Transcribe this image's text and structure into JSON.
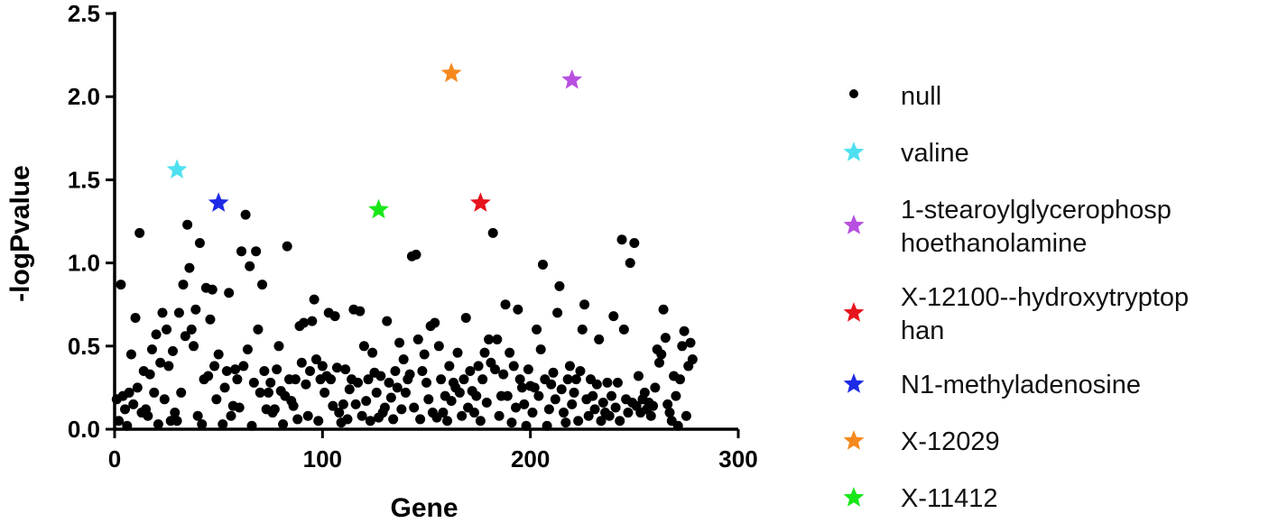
{
  "chart_data": {
    "type": "scatter",
    "xlabel": "Gene",
    "ylabel": "-logPvalue",
    "xlim": [
      0,
      300
    ],
    "ylim": [
      0,
      2.5
    ],
    "x_ticks": [
      "0",
      "100",
      "200",
      "300"
    ],
    "y_ticks": [
      "0.0",
      "0.5",
      "1.0",
      "1.5",
      "2.0",
      "2.5"
    ],
    "grid": false,
    "legend_position": "right",
    "series": [
      {
        "name": "null",
        "marker": "circle",
        "color": "#000000",
        "points": [
          [
            1,
            0.18
          ],
          [
            2,
            0.05
          ],
          [
            3,
            0.87
          ],
          [
            4,
            0.2
          ],
          [
            5,
            0.12
          ],
          [
            6,
            0.02
          ],
          [
            7,
            0.22
          ],
          [
            8,
            0.45
          ],
          [
            9,
            0.15
          ],
          [
            10,
            0.67
          ],
          [
            11,
            0.25
          ],
          [
            12,
            1.18
          ],
          [
            13,
            0.1
          ],
          [
            14,
            0.35
          ],
          [
            15,
            0.12
          ],
          [
            16,
            0.08
          ],
          [
            17,
            0.33
          ],
          [
            18,
            0.48
          ],
          [
            19,
            0.22
          ],
          [
            20,
            0.57
          ],
          [
            21,
            0.03
          ],
          [
            22,
            0.4
          ],
          [
            23,
            0.7
          ],
          [
            24,
            0.18
          ],
          [
            25,
            0.6
          ],
          [
            26,
            0.38
          ],
          [
            27,
            0.05
          ],
          [
            28,
            0.47
          ],
          [
            29,
            0.1
          ],
          [
            30,
            0.05
          ],
          [
            31,
            0.7
          ],
          [
            32,
            0.22
          ],
          [
            33,
            0.87
          ],
          [
            34,
            0.56
          ],
          [
            35,
            1.23
          ],
          [
            36,
            0.97
          ],
          [
            37,
            0.6
          ],
          [
            38,
            0.5
          ],
          [
            39,
            0.72
          ],
          [
            40,
            0.08
          ],
          [
            41,
            1.12
          ],
          [
            42,
            0.03
          ],
          [
            43,
            0.3
          ],
          [
            44,
            0.85
          ],
          [
            45,
            0.32
          ],
          [
            46,
            0.66
          ],
          [
            47,
            0.84
          ],
          [
            48,
            0.38
          ],
          [
            49,
            0.18
          ],
          [
            50,
            0.45
          ],
          [
            52,
            0.03
          ],
          [
            53,
            0.25
          ],
          [
            54,
            0.35
          ],
          [
            55,
            0.82
          ],
          [
            56,
            0.08
          ],
          [
            57,
            0.14
          ],
          [
            58,
            0.36
          ],
          [
            59,
            0.3
          ],
          [
            60,
            0.13
          ],
          [
            61,
            1.07
          ],
          [
            62,
            0.38
          ],
          [
            63,
            1.29
          ],
          [
            64,
            0.48
          ],
          [
            65,
            0.98
          ],
          [
            66,
            0.02
          ],
          [
            67,
            0.28
          ],
          [
            68,
            1.07
          ],
          [
            69,
            0.6
          ],
          [
            70,
            0.22
          ],
          [
            71,
            0.87
          ],
          [
            72,
            0.35
          ],
          [
            73,
            0.12
          ],
          [
            74,
            0.22
          ],
          [
            75,
            0.28
          ],
          [
            76,
            0.1
          ],
          [
            77,
            0.12
          ],
          [
            78,
            0.36
          ],
          [
            79,
            0.5
          ],
          [
            80,
            0.23
          ],
          [
            81,
            0.03
          ],
          [
            82,
            0.2
          ],
          [
            83,
            1.1
          ],
          [
            84,
            0.3
          ],
          [
            85,
            0.17
          ],
          [
            86,
            0.14
          ],
          [
            87,
            0.3
          ],
          [
            88,
            0.06
          ],
          [
            89,
            0.62
          ],
          [
            90,
            0.4
          ],
          [
            91,
            0.64
          ],
          [
            92,
            0.27
          ],
          [
            93,
            0.08
          ],
          [
            94,
            0.35
          ],
          [
            95,
            0.65
          ],
          [
            96,
            0.78
          ],
          [
            97,
            0.42
          ],
          [
            98,
            0.05
          ],
          [
            99,
            0.3
          ],
          [
            100,
            0.38
          ],
          [
            101,
            0.22
          ],
          [
            102,
            0.32
          ],
          [
            103,
            0.7
          ],
          [
            104,
            0.3
          ],
          [
            105,
            0.14
          ],
          [
            106,
            0.68
          ],
          [
            107,
            0.37
          ],
          [
            108,
            0.1
          ],
          [
            109,
            0.04
          ],
          [
            110,
            0.15
          ],
          [
            111,
            0.36
          ],
          [
            112,
            0.06
          ],
          [
            113,
            0.24
          ],
          [
            114,
            0.3
          ],
          [
            115,
            0.72
          ],
          [
            116,
            0.15
          ],
          [
            117,
            0.28
          ],
          [
            118,
            0.71
          ],
          [
            119,
            0.08
          ],
          [
            120,
            0.5
          ],
          [
            121,
            0.17
          ],
          [
            122,
            0.3
          ],
          [
            123,
            0.05
          ],
          [
            124,
            0.46
          ],
          [
            125,
            0.34
          ],
          [
            126,
            0.22
          ],
          [
            127,
            0.07
          ],
          [
            128,
            0.32
          ],
          [
            129,
            0.1
          ],
          [
            130,
            0.13
          ],
          [
            131,
            0.65
          ],
          [
            132,
            0.28
          ],
          [
            133,
            0.19
          ],
          [
            134,
            0.06
          ],
          [
            135,
            0.35
          ],
          [
            136,
            0.25
          ],
          [
            137,
            0.52
          ],
          [
            138,
            0.12
          ],
          [
            139,
            0.42
          ],
          [
            140,
            0.22
          ],
          [
            141,
            0.3
          ],
          [
            142,
            0.33
          ],
          [
            143,
            1.04
          ],
          [
            144,
            0.13
          ],
          [
            145,
            1.05
          ],
          [
            146,
            0.54
          ],
          [
            147,
            0.06
          ],
          [
            148,
            0.35
          ],
          [
            149,
            0.45
          ],
          [
            150,
            0.28
          ],
          [
            151,
            0.18
          ],
          [
            152,
            0.62
          ],
          [
            153,
            0.1
          ],
          [
            154,
            0.64
          ],
          [
            155,
            0.07
          ],
          [
            156,
            0.5
          ],
          [
            157,
            0.3
          ],
          [
            158,
            0.1
          ],
          [
            159,
            0.2
          ],
          [
            160,
            0.05
          ],
          [
            161,
            0.38
          ],
          [
            162,
            0.17
          ],
          [
            163,
            0.28
          ],
          [
            164,
            0.25
          ],
          [
            165,
            0.46
          ],
          [
            166,
            0.22
          ],
          [
            167,
            0.08
          ],
          [
            168,
            0.3
          ],
          [
            169,
            0.67
          ],
          [
            170,
            0.13
          ],
          [
            171,
            0.35
          ],
          [
            172,
            0.23
          ],
          [
            173,
            0.1
          ],
          [
            174,
            0.2
          ],
          [
            175,
            0.38
          ],
          [
            176,
            0.05
          ],
          [
            177,
            0.3
          ],
          [
            178,
            0.46
          ],
          [
            179,
            0.16
          ],
          [
            180,
            0.54
          ],
          [
            181,
            0.4
          ],
          [
            182,
            1.18
          ],
          [
            183,
            0.36
          ],
          [
            184,
            0.54
          ],
          [
            185,
            0.08
          ],
          [
            186,
            0.2
          ],
          [
            187,
            0.33
          ],
          [
            188,
            0.75
          ],
          [
            189,
            0.2
          ],
          [
            190,
            0.46
          ],
          [
            191,
            0.04
          ],
          [
            192,
            0.38
          ],
          [
            193,
            0.13
          ],
          [
            194,
            0.72
          ],
          [
            195,
            0.3
          ],
          [
            196,
            0.25
          ],
          [
            197,
            0.15
          ],
          [
            198,
            0.02
          ],
          [
            199,
            0.36
          ],
          [
            200,
            0.26
          ],
          [
            201,
            0.1
          ],
          [
            202,
            0.25
          ],
          [
            203,
            0.6
          ],
          [
            204,
            0.2
          ],
          [
            205,
            0.48
          ],
          [
            206,
            0.99
          ],
          [
            207,
            0.3
          ],
          [
            208,
            0.02
          ],
          [
            209,
            0.12
          ],
          [
            210,
            0.27
          ],
          [
            211,
            0.34
          ],
          [
            212,
            0.18
          ],
          [
            213,
            0.7
          ],
          [
            214,
            0.86
          ],
          [
            215,
            0.24
          ],
          [
            216,
            0.1
          ],
          [
            217,
            0.04
          ],
          [
            218,
            0.3
          ],
          [
            219,
            0.38
          ],
          [
            220,
            0.15
          ],
          [
            221,
            0.22
          ],
          [
            222,
            0.3
          ],
          [
            223,
            0.05
          ],
          [
            224,
            0.35
          ],
          [
            225,
            0.6
          ],
          [
            226,
            0.75
          ],
          [
            227,
            0.18
          ],
          [
            228,
            0.08
          ],
          [
            229,
            0.3
          ],
          [
            230,
            0.2
          ],
          [
            231,
            0.12
          ],
          [
            232,
            0.27
          ],
          [
            233,
            0.54
          ],
          [
            234,
            0.05
          ],
          [
            235,
            0.16
          ],
          [
            236,
            0.1
          ],
          [
            237,
            0.28
          ],
          [
            238,
            0.08
          ],
          [
            239,
            0.2
          ],
          [
            240,
            0.68
          ],
          [
            241,
            0.13
          ],
          [
            242,
            0.28
          ],
          [
            243,
            0.05
          ],
          [
            244,
            1.14
          ],
          [
            245,
            0.6
          ],
          [
            246,
            0.18
          ],
          [
            247,
            0.1
          ],
          [
            248,
            1.0
          ],
          [
            249,
            0.16
          ],
          [
            250,
            1.12
          ],
          [
            251,
            0.14
          ],
          [
            252,
            0.32
          ],
          [
            253,
            0.1
          ],
          [
            254,
            0.18
          ],
          [
            255,
            0.22
          ],
          [
            256,
            0.12
          ],
          [
            257,
            0.16
          ],
          [
            258,
            0.08
          ],
          [
            259,
            0.14
          ],
          [
            260,
            0.25
          ],
          [
            261,
            0.48
          ],
          [
            262,
            0.4
          ],
          [
            263,
            0.45
          ],
          [
            264,
            0.72
          ],
          [
            265,
            0.55
          ],
          [
            266,
            0.15
          ],
          [
            267,
            0.1
          ],
          [
            268,
            0.05
          ],
          [
            269,
            0.32
          ],
          [
            270,
            0.2
          ],
          [
            271,
            0.02
          ],
          [
            272,
            0.3
          ],
          [
            273,
            0.5
          ],
          [
            274,
            0.59
          ],
          [
            275,
            0.08
          ],
          [
            276,
            0.38
          ],
          [
            277,
            0.52
          ],
          [
            278,
            0.42
          ]
        ]
      },
      {
        "name": "valine",
        "marker": "star",
        "color": "#4fe0ef",
        "points": [
          [
            30,
            1.56
          ]
        ]
      },
      {
        "name": "1-stearoylglycerophosp\nhoethanolamine",
        "marker": "star",
        "color": "#b84fe0",
        "points": [
          [
            220,
            2.1
          ]
        ]
      },
      {
        "name": "X-12100--hydroxytryptop\nhan",
        "marker": "star",
        "color": "#e6141e",
        "points": [
          [
            176,
            1.36
          ]
        ]
      },
      {
        "name": "N1-methyladenosine",
        "marker": "star",
        "color": "#1e2be6",
        "points": [
          [
            50,
            1.36
          ]
        ]
      },
      {
        "name": "X-12029",
        "marker": "star",
        "color": "#f5891e",
        "points": [
          [
            162,
            2.14
          ]
        ]
      },
      {
        "name": "X-11412",
        "marker": "star",
        "color": "#19e619",
        "points": [
          [
            127,
            1.32
          ]
        ]
      }
    ]
  }
}
